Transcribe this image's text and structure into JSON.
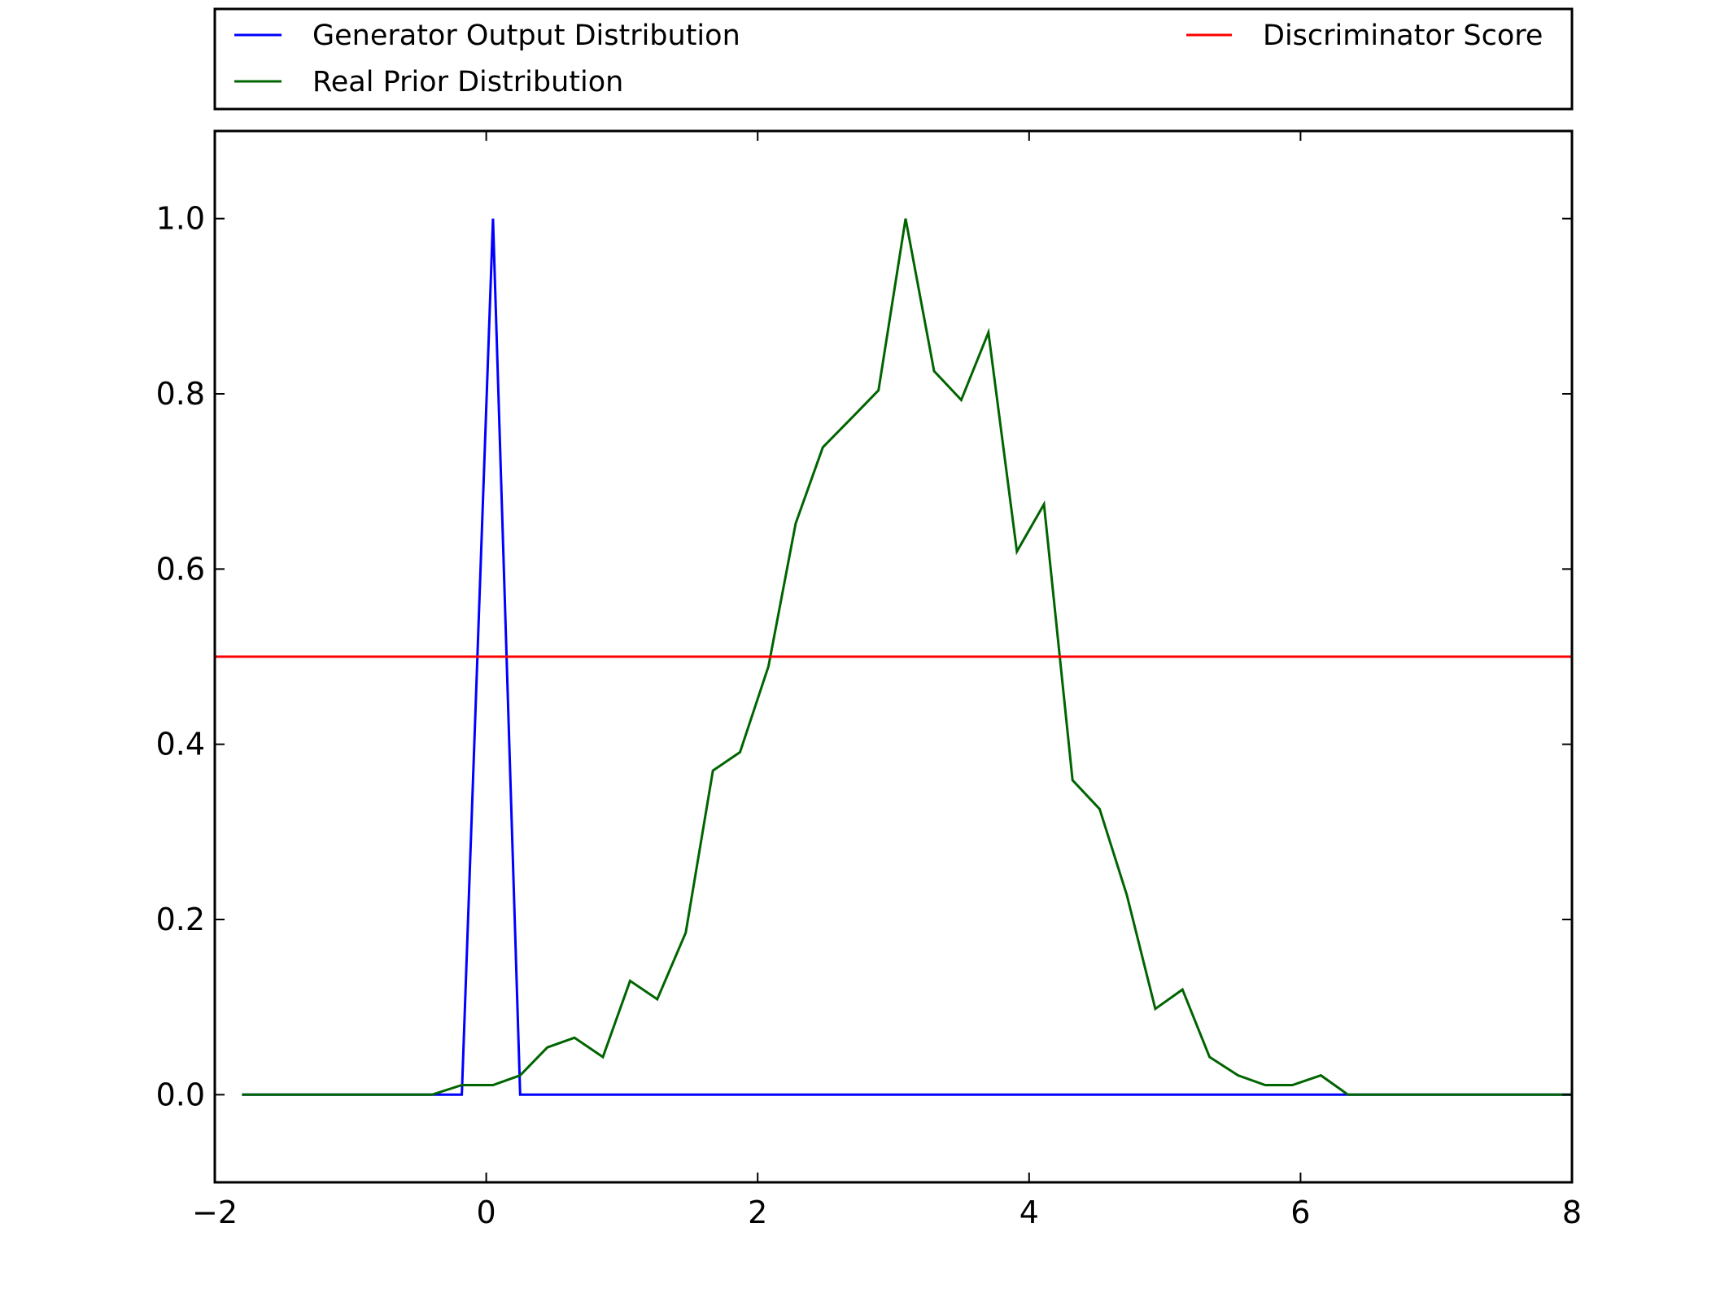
{
  "chart_data": {
    "type": "line",
    "title": "",
    "xlabel": "",
    "ylabel": "",
    "xlim": [
      -2,
      8
    ],
    "ylim": [
      -0.1,
      1.1
    ],
    "xticks": [
      -2,
      0,
      2,
      4,
      6,
      8
    ],
    "xtick_labels": [
      "−2",
      "0",
      "2",
      "4",
      "6",
      "8"
    ],
    "yticks": [
      0.0,
      0.2,
      0.4,
      0.6,
      0.8,
      1.0
    ],
    "ytick_labels": [
      "0.0",
      "0.2",
      "0.4",
      "0.6",
      "0.8",
      "1.0"
    ],
    "grid": false,
    "legend_position": "top (above plot)",
    "series": [
      {
        "name": "Generator Output Distribution",
        "color": "#0000ff",
        "x": [
          -1.8,
          -0.18,
          0.05,
          0.25,
          8.0
        ],
        "y": [
          0.0,
          0.0,
          1.0,
          0.0,
          0.0
        ]
      },
      {
        "name": "Real Prior Distribution",
        "color": "#006400",
        "x": [
          -1.8,
          -0.4,
          -0.18,
          0.05,
          0.25,
          0.45,
          0.65,
          0.86,
          1.06,
          1.26,
          1.47,
          1.67,
          1.87,
          2.08,
          2.28,
          2.48,
          2.69,
          2.89,
          3.09,
          3.3,
          3.5,
          3.7,
          3.91,
          4.11,
          4.32,
          4.52,
          4.72,
          4.93,
          5.13,
          5.33,
          5.54,
          5.74,
          5.94,
          6.15,
          6.35,
          8.0
        ],
        "y": [
          0.0,
          0.0,
          0.011,
          0.011,
          0.022,
          0.054,
          0.065,
          0.043,
          0.13,
          0.109,
          0.185,
          0.37,
          0.391,
          0.489,
          0.652,
          0.739,
          0.772,
          0.804,
          1.0,
          0.826,
          0.793,
          0.87,
          0.62,
          0.674,
          0.359,
          0.326,
          0.228,
          0.098,
          0.12,
          0.043,
          0.022,
          0.011,
          0.011,
          0.022,
          0.0,
          0.0
        ]
      },
      {
        "name": "Discriminator Score",
        "color": "#ff0000",
        "x": [
          -2.0,
          8.0
        ],
        "y": [
          0.5,
          0.5
        ]
      }
    ]
  }
}
